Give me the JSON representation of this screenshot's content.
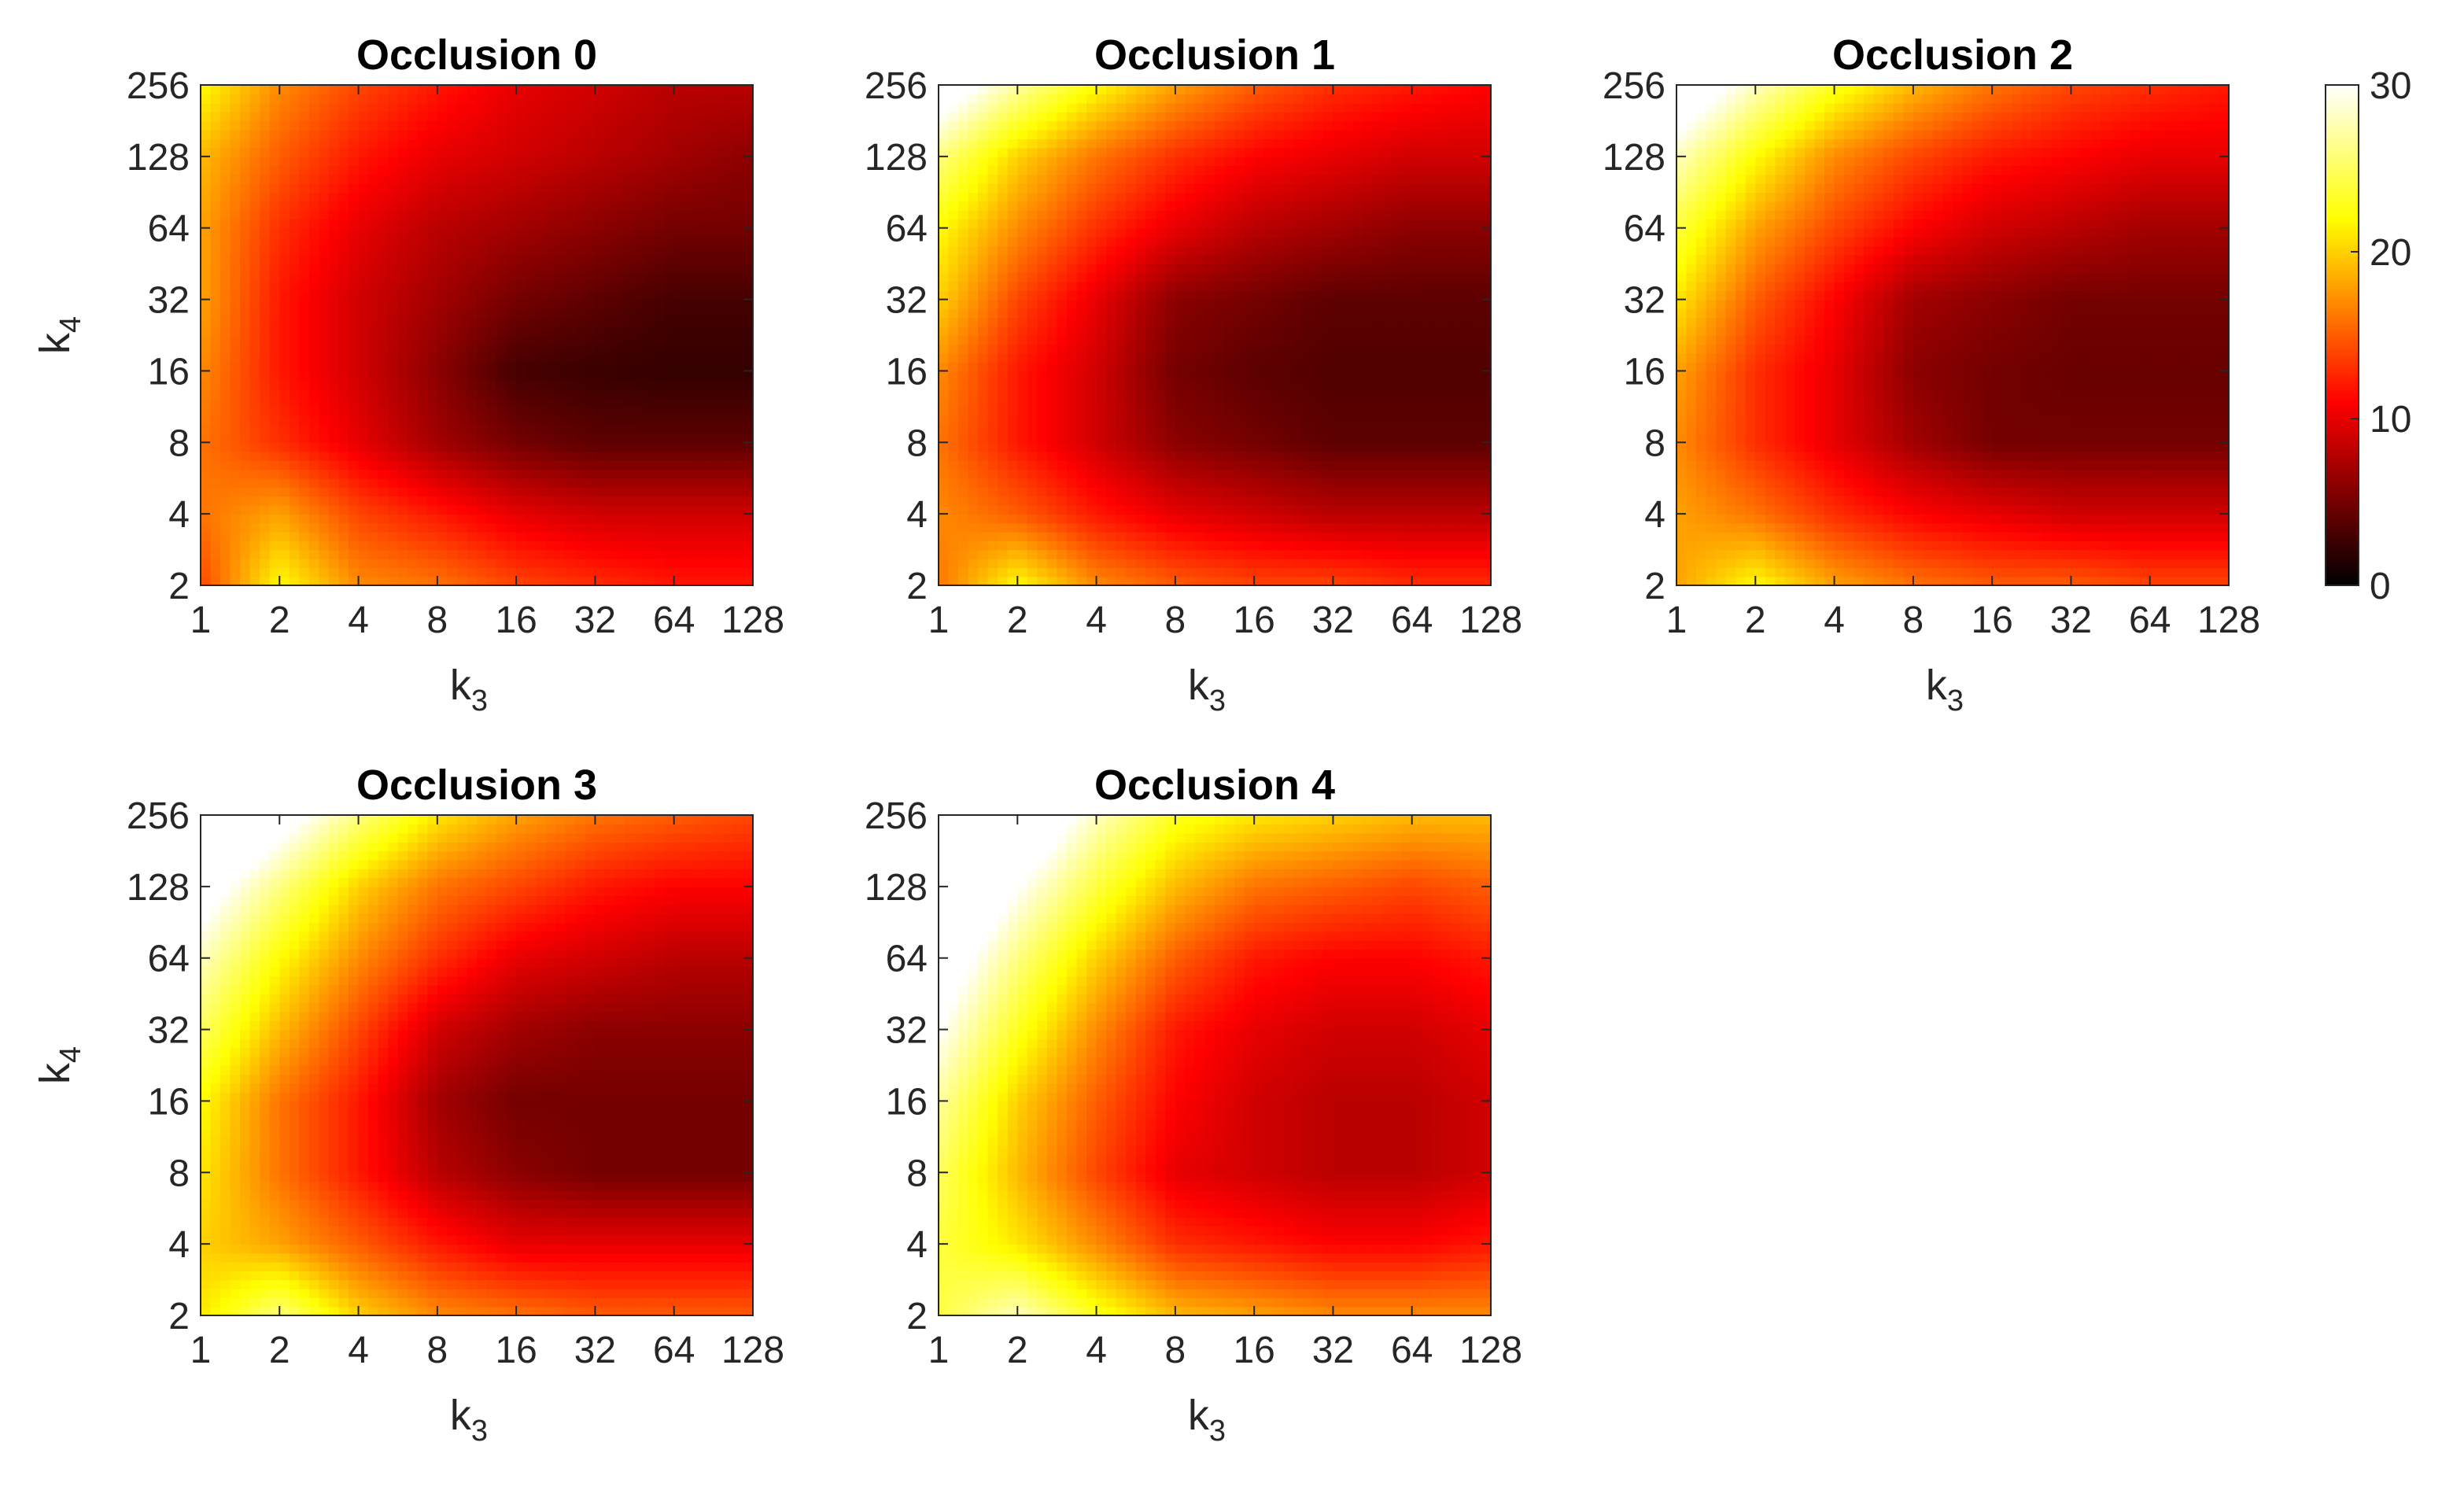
{
  "chart_data": {
    "type": "heatmap",
    "subtype": "filled-contour",
    "colormap": "hot",
    "colorbar": {
      "min": 0,
      "max": 30,
      "ticks": [
        "0",
        "10",
        "20",
        "30"
      ]
    },
    "x_axis": {
      "label": "k",
      "label_sub": "3",
      "ticks": [
        "1",
        "2",
        "4",
        "8",
        "16",
        "32",
        "64",
        "128"
      ],
      "scale": "log2"
    },
    "y_axis": {
      "label": "k",
      "label_sub": "4",
      "ticks": [
        "2",
        "4",
        "8",
        "16",
        "32",
        "64",
        "128",
        "256"
      ],
      "scale": "log2"
    },
    "panels": [
      {
        "title": "Occlusion 0",
        "z": [
          [
            14,
            22,
            17,
            16,
            14,
            13,
            12,
            12
          ],
          [
            16,
            18,
            14,
            12,
            10,
            9,
            9,
            9
          ],
          [
            16,
            13,
            10,
            7,
            5,
            4,
            4,
            4
          ],
          [
            17,
            12,
            9,
            6,
            3,
            2.5,
            2.2,
            2.2
          ],
          [
            18,
            12,
            9,
            7,
            5,
            4,
            3,
            3
          ],
          [
            18,
            13,
            10,
            8,
            7,
            6,
            5,
            5
          ],
          [
            19,
            15,
            12,
            10,
            9,
            8,
            7,
            6
          ],
          [
            22,
            17,
            14,
            12,
            10,
            9,
            8,
            8
          ]
        ]
      },
      {
        "title": "Occlusion 1",
        "z": [
          [
            16,
            22,
            17,
            15,
            14,
            14,
            13,
            13
          ],
          [
            17,
            15,
            12,
            10,
            9,
            8,
            8,
            8
          ],
          [
            16,
            12,
            9,
            6,
            5,
            4,
            4,
            4
          ],
          [
            17,
            12,
            9,
            5,
            4,
            3.5,
            3.5,
            3.5
          ],
          [
            20,
            14,
            10,
            6,
            5,
            4,
            4,
            4
          ],
          [
            22,
            17,
            13,
            10,
            8,
            7,
            6,
            6
          ],
          [
            26,
            20,
            16,
            13,
            11,
            10,
            9,
            9
          ],
          [
            33,
            27,
            22,
            18,
            15,
            13,
            12,
            11
          ]
        ]
      },
      {
        "title": "Occlusion 2",
        "z": [
          [
            18,
            22,
            18,
            16,
            15,
            15,
            14,
            14
          ],
          [
            18,
            16,
            13,
            11,
            10,
            9,
            9,
            9
          ],
          [
            17,
            13,
            10,
            7,
            5,
            5,
            5,
            5
          ],
          [
            18,
            13,
            10,
            6,
            5,
            4.5,
            4.5,
            4.5
          ],
          [
            21,
            15,
            11,
            7,
            6,
            5,
            5,
            5
          ],
          [
            24,
            18,
            14,
            11,
            9,
            8,
            7,
            7
          ],
          [
            28,
            22,
            17,
            14,
            12,
            11,
            10,
            10
          ],
          [
            34,
            28,
            23,
            19,
            16,
            14,
            13,
            12
          ]
        ]
      },
      {
        "title": "Occlusion 3",
        "z": [
          [
            21,
            26,
            20,
            17,
            16,
            15,
            15,
            15
          ],
          [
            20,
            18,
            15,
            12,
            10,
            10,
            10,
            10
          ],
          [
            21,
            16,
            12,
            8,
            6,
            5,
            5,
            5
          ],
          [
            22,
            16,
            12,
            7,
            5,
            5,
            5,
            5
          ],
          [
            25,
            19,
            14,
            9,
            7,
            6,
            6,
            6
          ],
          [
            28,
            22,
            17,
            13,
            10,
            9,
            8,
            8
          ],
          [
            32,
            26,
            20,
            16,
            14,
            12,
            11,
            11
          ],
          [
            38,
            32,
            26,
            21,
            18,
            16,
            15,
            14
          ]
        ]
      },
      {
        "title": "Occlusion 4",
        "z": [
          [
            24,
            28,
            23,
            19,
            18,
            17,
            17,
            17
          ],
          [
            24,
            21,
            17,
            13,
            12,
            11,
            11,
            12
          ],
          [
            25,
            19,
            14,
            10,
            9,
            8,
            8,
            9
          ],
          [
            27,
            20,
            15,
            11,
            9,
            8,
            8,
            9
          ],
          [
            30,
            23,
            17,
            12,
            10,
            9,
            9,
            10
          ],
          [
            33,
            26,
            20,
            15,
            12,
            11,
            11,
            12
          ],
          [
            37,
            30,
            24,
            19,
            16,
            15,
            14,
            15
          ],
          [
            42,
            35,
            28,
            23,
            21,
            20,
            19,
            19
          ]
        ]
      }
    ]
  }
}
